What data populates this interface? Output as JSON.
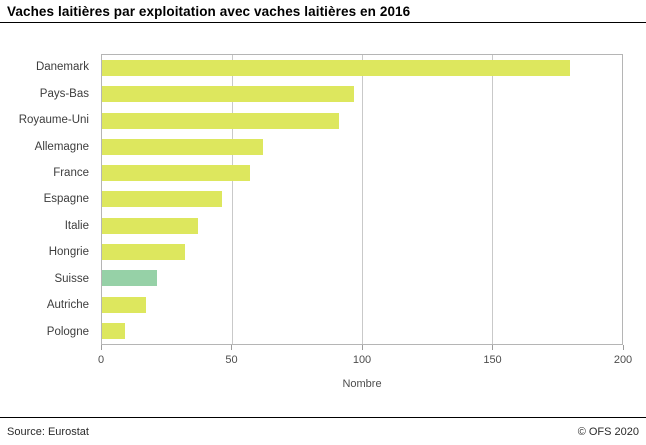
{
  "title": "Vaches laitières par exploitation avec vaches laitières en 2016",
  "footer": {
    "source": "Source: Eurostat",
    "copyright": "© OFS 2020"
  },
  "colors": {
    "bar_default": "#dde75e",
    "bar_highlight": "#96d1a7",
    "gridline": "#c9c9c9",
    "axis_text": "#4d4d4d"
  },
  "chart_data": {
    "type": "bar",
    "orientation": "horizontal",
    "title": "Vaches laitières par exploitation avec vaches laitières en 2016",
    "xlabel": "Nombre",
    "ylabel": "",
    "xlim": [
      0,
      200
    ],
    "xticks": [
      0,
      50,
      100,
      150,
      200
    ],
    "grid": true,
    "legend": false,
    "categories": [
      "Danemark",
      "Pays-Bas",
      "Royaume-Uni",
      "Allemagne",
      "France",
      "Espagne",
      "Italie",
      "Hongrie",
      "Suisse",
      "Autriche",
      "Pologne"
    ],
    "values": [
      180,
      97,
      91,
      62,
      57,
      46,
      37,
      32,
      21,
      17,
      9
    ],
    "bar_colors": [
      "#dde75e",
      "#dde75e",
      "#dde75e",
      "#dde75e",
      "#dde75e",
      "#dde75e",
      "#dde75e",
      "#dde75e",
      "#96d1a7",
      "#dde75e",
      "#dde75e"
    ],
    "highlighted_category": "Suisse"
  }
}
